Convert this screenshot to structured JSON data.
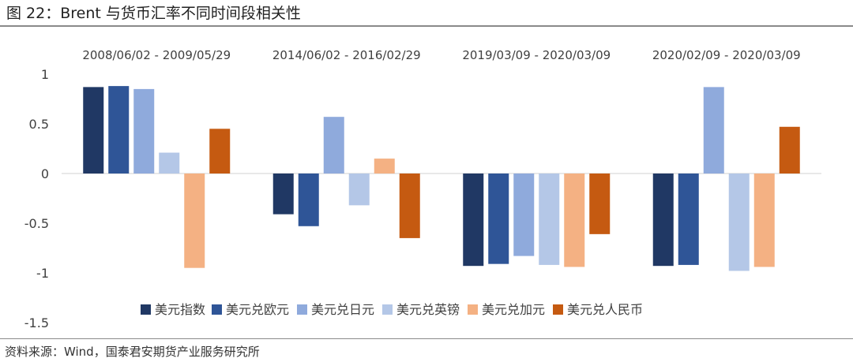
{
  "figure": {
    "title": "图 22：Brent 与货币汇率不同时间段相关性",
    "source": "资料来源：Wind，国泰君安期货产业服务研究所"
  },
  "chart_data": {
    "type": "bar",
    "title": "",
    "xlabel": "",
    "ylabel": "",
    "ylim": [
      -1.5,
      1
    ],
    "yticks": [
      1,
      0.5,
      0,
      -0.5,
      -1,
      -1.5
    ],
    "ytick_labels": [
      "1",
      "0.5",
      "0",
      "-0.5",
      "-1",
      "-1.5"
    ],
    "grid": false,
    "legend_position": "bottom",
    "categories": [
      "2008/06/02 - 2009/05/29",
      "2014/06/02 - 2016/02/29",
      "2019/03/09 - 2020/03/09",
      "2020/02/09 - 2020/03/09"
    ],
    "series": [
      {
        "name": "美元指数",
        "color": "#203864",
        "values": [
          0.87,
          -0.41,
          -0.93,
          -0.93
        ]
      },
      {
        "name": "美元兑欧元",
        "color": "#2f5597",
        "values": [
          0.88,
          -0.53,
          -0.91,
          -0.92
        ]
      },
      {
        "name": "美元兑日元",
        "color": "#8faadc",
        "values": [
          0.85,
          0.57,
          -0.83,
          0.87
        ]
      },
      {
        "name": "美元兑英镑",
        "color": "#b4c7e7",
        "values": [
          0.21,
          -0.32,
          -0.92,
          -0.98
        ]
      },
      {
        "name": "美元兑加元",
        "color": "#f4b183",
        "values": [
          -0.95,
          0.15,
          -0.94,
          -0.94
        ]
      },
      {
        "name": "美元兑人民币",
        "color": "#c55a11",
        "values": [
          0.45,
          -0.65,
          -0.61,
          0.47
        ]
      }
    ]
  }
}
